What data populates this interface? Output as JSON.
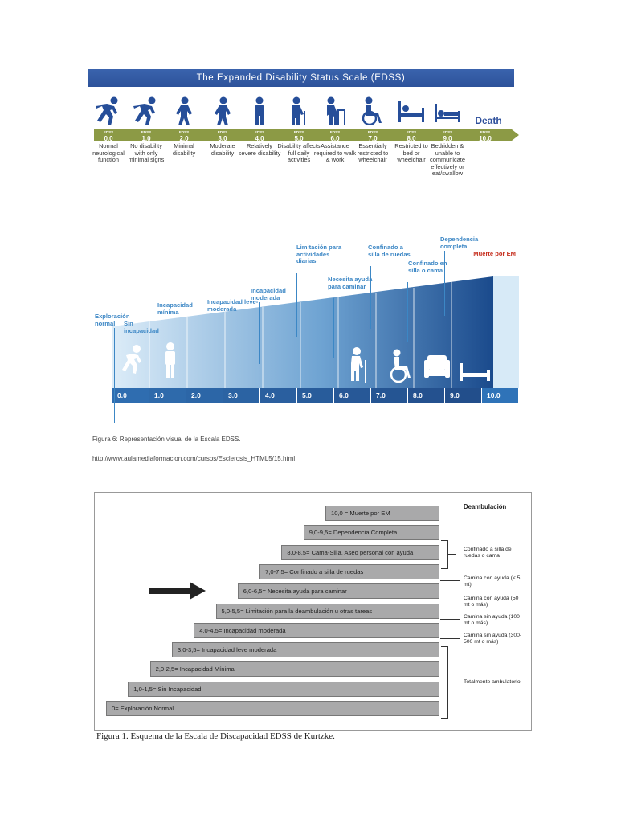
{
  "edss_scale": {
    "title": "The Expanded Disability Status Scale (EDSS)",
    "steps": [
      {
        "label": "EDSS",
        "value": "0.0",
        "description": "Normal neurological function",
        "icon": "runner-icon"
      },
      {
        "label": "EDSS",
        "value": "1.0",
        "description": "No disability with only minimal signs",
        "icon": "runner-icon"
      },
      {
        "label": "EDSS",
        "value": "2.0",
        "description": "Minimal disability",
        "icon": "walker-icon"
      },
      {
        "label": "EDSS",
        "value": "3.0",
        "description": "Moderate disability",
        "icon": "walker-icon"
      },
      {
        "label": "EDSS",
        "value": "4.0",
        "description": "Relatively severe disability",
        "icon": "standing-icon"
      },
      {
        "label": "EDSS",
        "value": "5.0",
        "description": "Disability affects full daily activities",
        "icon": "cane-icon"
      },
      {
        "label": "EDSS",
        "value": "6.0",
        "description": "Assistance required to walk & work",
        "icon": "walking-frame-icon"
      },
      {
        "label": "EDSS",
        "value": "7.0",
        "description": "Essentially restricted to wheelchair",
        "icon": "wheelchair-icon"
      },
      {
        "label": "EDSS",
        "value": "8.0",
        "description": "Restricted to bed or wheelchair",
        "icon": "bed-icon"
      },
      {
        "label": "EDSS",
        "value": "9.0",
        "description": "Bedridden & unable to communicate effectively or eat/swallow",
        "icon": "bedridden-icon"
      },
      {
        "label": "EDSS",
        "value": "10.0",
        "description": "",
        "icon": "death-text"
      }
    ],
    "death_label": "Death",
    "colors": {
      "banner": "#2d529a",
      "band": "#8c9a45",
      "icon": "#264e99"
    }
  },
  "spanish_chart": {
    "labels": [
      "Exploración normal",
      "Sin incapacidad",
      "Incapacidad mínima",
      "Incapacidad leve-moderada",
      "Incapacidad moderada",
      "Limitación para actividades diarias",
      "Necesita ayuda para caminar",
      "Confinado a silla de ruedas",
      "Confinado en silla o cama",
      "Dependencia completa",
      "Muerte por EM"
    ],
    "scores": [
      "0.0",
      "1.0",
      "2.0",
      "3.0",
      "4.0",
      "5.0",
      "6.0",
      "7.0",
      "8.0",
      "9.0",
      "10.0"
    ],
    "colors": {
      "label": "#3c87c5",
      "death": "#c62f1f",
      "dark": "#1e4d8e",
      "light": "#cfe5f4"
    }
  },
  "figure6": {
    "caption": "Figura 6: Representación visual de la Escala EDSS.",
    "url": "http://www.aulamediaformacion.com/cursos/Esclerosis_HTML5/15.html"
  },
  "kurtzke": {
    "steps": [
      "0= Exploración Normal",
      "1,0-1,5= Sin Incapacidad",
      "2,0-2,5= Incapacidad Mínima",
      "3,0-3,5= Incapacidad leve moderada",
      "4,0-4,5= Incapacidad moderada",
      "5,0-5,5= Limitación para la deambulación u otras tareas",
      "6,0-6,5= Necesita ayuda para caminar",
      "7,0-7,5= Confinado a silla de ruedas",
      "8,0-8,5= Cama-Silla, Aseo personal con ayuda",
      "9,0-9,5= Dependencia Completa",
      "10,0 = Muerte por EM"
    ],
    "ambulation_title": "Deambulación",
    "notes": [
      "Confinado a silla de ruedas o cama",
      "Camina con ayuda (< 5 mt)",
      "Camina con ayuda (50 mt o más)",
      "Camina sin ayuda (100 mt o más)",
      "Camina sin ayuda (300-500 mt o más)",
      "Totalmente ambulatorio"
    ],
    "caption": "Figura 1. Esquema de la Escala de Discapacidad EDSS de Kurtzke."
  }
}
